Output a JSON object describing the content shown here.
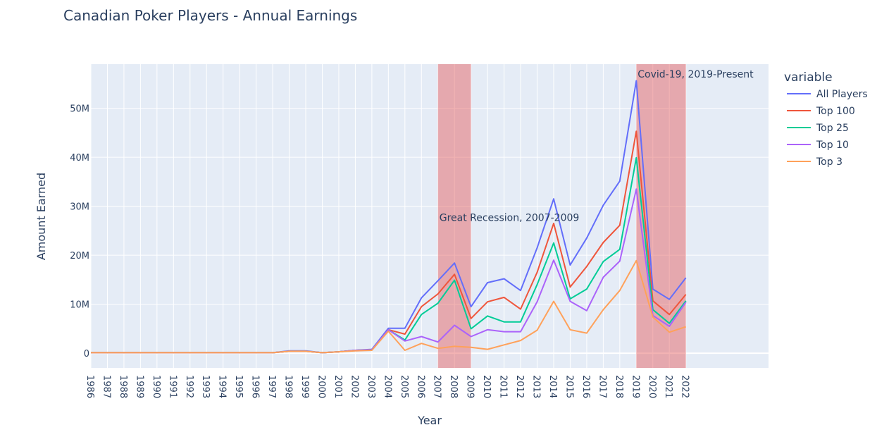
{
  "chart_data": {
    "type": "line",
    "title": "Canadian Poker Players - Annual Earnings",
    "xlabel": "Year",
    "ylabel": "Amount Earned",
    "legend_title": "variable",
    "legend_position": "right",
    "grid": true,
    "x": [
      1986,
      1987,
      1988,
      1989,
      1990,
      1991,
      1992,
      1993,
      1994,
      1995,
      1996,
      1997,
      1998,
      1999,
      2000,
      2001,
      2002,
      2003,
      2004,
      2005,
      2006,
      2007,
      2008,
      2009,
      2010,
      2011,
      2012,
      2013,
      2014,
      2015,
      2016,
      2017,
      2018,
      2019,
      2020,
      2021,
      2022
    ],
    "x_tick_labels": [
      "1986",
      "1987",
      "1988",
      "1989",
      "1990",
      "1991",
      "1992",
      "1993",
      "1994",
      "1995",
      "1996",
      "1997",
      "1998",
      "1999",
      "2000",
      "2001",
      "2002",
      "2003",
      "2004",
      "2005",
      "2006",
      "2007",
      "2008",
      "2009",
      "2010",
      "2011",
      "2012",
      "2013",
      "2014",
      "2015",
      "2016",
      "2017",
      "2018",
      "2019",
      "2020",
      "2021",
      "2022"
    ],
    "xlim": [
      1986,
      2027
    ],
    "ylim": [
      -3000000,
      59000000
    ],
    "y_ticks": [
      0,
      10000000,
      20000000,
      30000000,
      40000000,
      50000000
    ],
    "y_tick_labels": [
      "0",
      "10M",
      "20M",
      "30M",
      "40M",
      "50M"
    ],
    "series": [
      {
        "name": "All Players",
        "color": "#636efa",
        "values": [
          0.1,
          0.1,
          0.1,
          0.1,
          0.1,
          0.1,
          0.1,
          0.1,
          0.1,
          0.1,
          0.1,
          0.1,
          0.5,
          0.5,
          0.1,
          0.3,
          0.6,
          0.8,
          5.1,
          5.1,
          11.3,
          14.8,
          18.4,
          9.5,
          14.4,
          15.2,
          12.8,
          21.5,
          31.5,
          18.0,
          23.5,
          30.2,
          35.1,
          55.6,
          13.1,
          11.0,
          15.4
        ]
      },
      {
        "name": "Top 100",
        "color": "#ef553b",
        "values": [
          0.1,
          0.1,
          0.1,
          0.1,
          0.1,
          0.1,
          0.1,
          0.1,
          0.1,
          0.1,
          0.1,
          0.1,
          0.4,
          0.4,
          0.1,
          0.3,
          0.6,
          0.7,
          4.8,
          3.9,
          9.5,
          12.1,
          16.1,
          7.1,
          10.5,
          11.4,
          9.0,
          16.5,
          26.5,
          13.5,
          17.7,
          22.6,
          26.1,
          45.3,
          10.7,
          7.9,
          12.0
        ]
      },
      {
        "name": "Top 25",
        "color": "#00cc96",
        "values": [
          0.1,
          0.1,
          0.1,
          0.1,
          0.1,
          0.1,
          0.1,
          0.1,
          0.1,
          0.1,
          0.1,
          0.1,
          0.4,
          0.4,
          0.1,
          0.3,
          0.6,
          0.7,
          4.8,
          2.7,
          7.9,
          10.2,
          14.9,
          5.0,
          7.6,
          6.4,
          6.4,
          14.0,
          22.5,
          11.1,
          13.1,
          18.7,
          21.2,
          39.9,
          8.9,
          6.1,
          10.7
        ]
      },
      {
        "name": "Top 10",
        "color": "#ab63fa",
        "values": [
          0.1,
          0.1,
          0.1,
          0.1,
          0.1,
          0.1,
          0.1,
          0.1,
          0.1,
          0.1,
          0.1,
          0.1,
          0.4,
          0.4,
          0.1,
          0.3,
          0.6,
          0.7,
          4.8,
          2.5,
          3.4,
          2.3,
          5.7,
          3.4,
          4.8,
          4.4,
          4.4,
          10.5,
          19.0,
          10.6,
          8.7,
          15.5,
          18.8,
          33.5,
          7.7,
          5.5,
          10.4
        ]
      },
      {
        "name": "Top 3",
        "color": "#ffa15a",
        "values": [
          0.1,
          0.1,
          0.1,
          0.1,
          0.1,
          0.1,
          0.1,
          0.1,
          0.1,
          0.1,
          0.1,
          0.1,
          0.4,
          0.4,
          0.1,
          0.3,
          0.5,
          0.6,
          4.5,
          0.6,
          2.0,
          1.0,
          1.4,
          1.2,
          0.8,
          1.7,
          2.6,
          4.7,
          10.6,
          4.8,
          4.1,
          8.9,
          12.8,
          18.9,
          7.4,
          4.3,
          5.4
        ]
      }
    ],
    "series_value_unit_multiplier": 1000000,
    "shaded_regions": [
      {
        "x0": 2007,
        "x1": 2009,
        "label": "Great Recession, 2007-2009",
        "color": "#e45756"
      },
      {
        "x0": 2019,
        "x1": 2022,
        "label": "Covid-19, 2019-Present",
        "color": "#e45756"
      }
    ]
  }
}
